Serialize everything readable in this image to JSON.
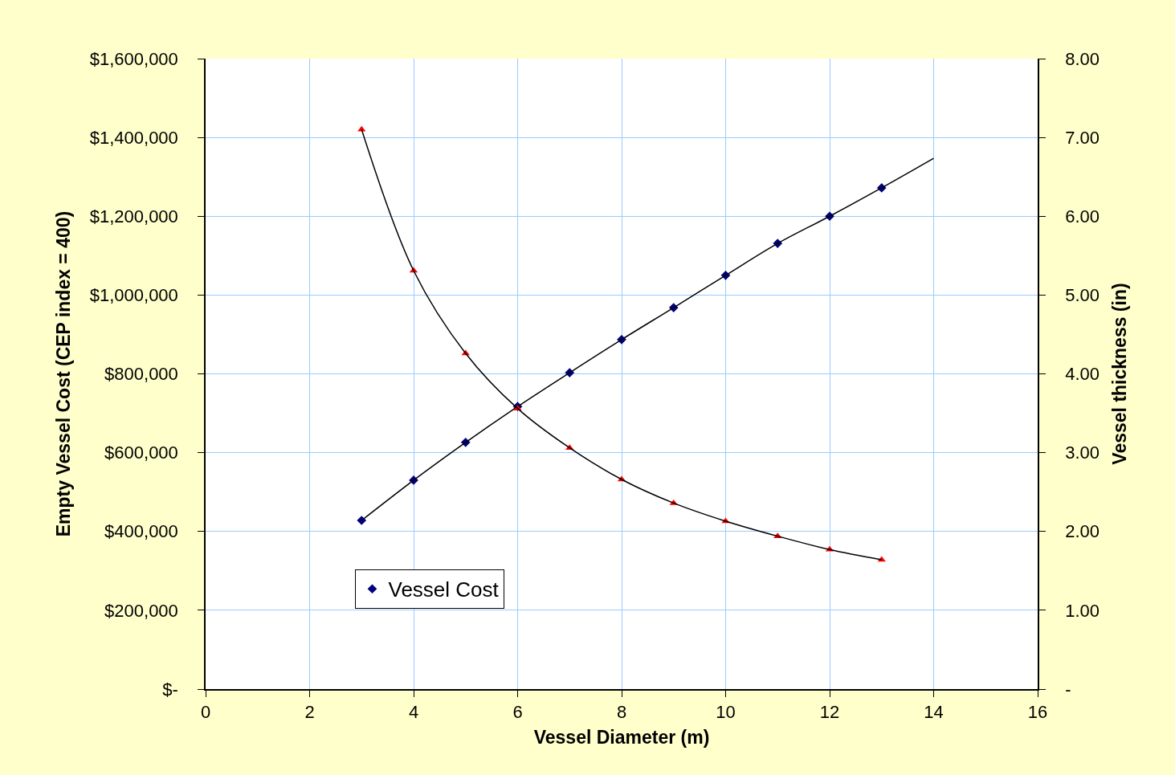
{
  "chart_data": {
    "type": "scatter",
    "xlabel": "Vessel Diameter (m)",
    "ylabel": "Empty Vessel Cost (CEP index = 400)",
    "y2label": "Vessel thickness (in)",
    "series": [
      {
        "name": "Vessel Cost",
        "color": "#000080",
        "marker": "diamond",
        "x": [
          3,
          4,
          5,
          6,
          7,
          8,
          9,
          10,
          11,
          12,
          13
        ],
        "values": [
          428000,
          530000,
          626000,
          717000,
          803000,
          887000,
          968000,
          1050000,
          1131000,
          1200000,
          1272000
        ]
      },
      {
        "color": "#ff0000",
        "marker": "triangle",
        "axis": "y2",
        "x": [
          3,
          4,
          5,
          6,
          7,
          8,
          9,
          10,
          11,
          12,
          13
        ],
        "values": [
          7.1,
          5.31,
          4.26,
          3.56,
          3.06,
          2.66,
          2.36,
          2.13,
          1.94,
          1.77,
          1.64
        ]
      },
      {
        "type": "line",
        "color": "#000000",
        "marker": "none",
        "x": [
          3,
          4,
          5,
          6,
          7,
          8,
          9,
          10,
          11,
          12,
          13,
          14
        ],
        "values": [
          428000,
          530000,
          626000,
          717000,
          803000,
          887000,
          968000,
          1050000,
          1131000,
          1200000,
          1272000,
          1347000
        ]
      },
      {
        "type": "line",
        "color": "#000000",
        "marker": "none",
        "axis": "y2",
        "x": [
          3,
          4,
          5,
          6,
          7,
          8,
          9,
          10,
          11,
          12,
          13
        ],
        "values": [
          7.1,
          5.31,
          4.26,
          3.56,
          3.06,
          2.66,
          2.36,
          2.13,
          1.94,
          1.77,
          1.64
        ]
      }
    ],
    "xlim": [
      0,
      16
    ],
    "xticks": [
      0,
      2,
      4,
      6,
      8,
      10,
      12,
      14,
      16
    ],
    "ylim": [
      0,
      1600000
    ],
    "yticks": [
      {
        "value": 0,
        "label": "$-"
      },
      {
        "value": 200000,
        "label": "$200,000"
      },
      {
        "value": 400000,
        "label": "$400,000"
      },
      {
        "value": 600000,
        "label": "$600,000"
      },
      {
        "value": 800000,
        "label": "$800,000"
      },
      {
        "value": 1000000,
        "label": "$1,000,000"
      },
      {
        "value": 1200000,
        "label": "$1,200,000"
      },
      {
        "value": 1400000,
        "label": "$1,400,000"
      },
      {
        "value": 1600000,
        "label": "$1,600,000"
      }
    ],
    "y2lim": [
      0,
      8
    ],
    "y2ticks": [
      {
        "value": 0,
        "label": "-"
      },
      {
        "value": 1,
        "label": "1.00"
      },
      {
        "value": 2,
        "label": "2.00"
      },
      {
        "value": 3,
        "label": "3.00"
      },
      {
        "value": 4,
        "label": "4.00"
      },
      {
        "value": 5,
        "label": "5.00"
      },
      {
        "value": 6,
        "label": "6.00"
      },
      {
        "value": 7,
        "label": "7.00"
      },
      {
        "value": 8,
        "label": "8.00"
      }
    ],
    "grid": true,
    "legend": "bottom left"
  }
}
